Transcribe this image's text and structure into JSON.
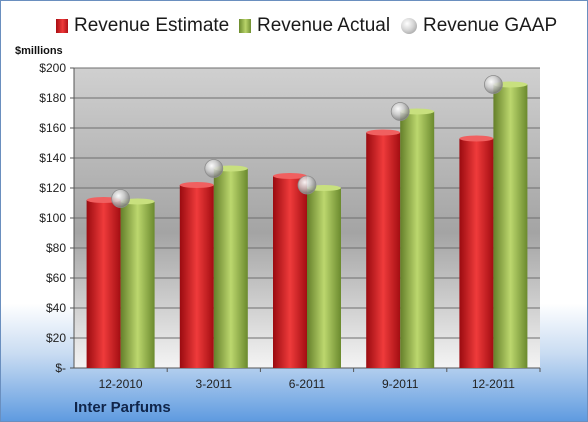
{
  "legend": {
    "estimate": "Revenue Estimate",
    "actual": "Revenue Actual",
    "gaap": "Revenue GAAP"
  },
  "unit_label": "$millions",
  "company": "Inter Parfums",
  "colors": {
    "estimate": "#d2191e",
    "actual": "#9bbb59",
    "gaap": "#c0c0c0"
  },
  "chart_data": {
    "type": "bar",
    "title": "",
    "xlabel": "",
    "ylabel": "$millions",
    "categories": [
      "12-2010",
      "3-2011",
      "6-2011",
      "9-2011",
      "12-2011"
    ],
    "ylim": [
      0,
      200
    ],
    "yticks": [
      0,
      20,
      40,
      60,
      80,
      100,
      120,
      140,
      160,
      180,
      200
    ],
    "ytick_labels": [
      "$-",
      "$20",
      "$40",
      "$60",
      "$80",
      "$100",
      "$120",
      "$140",
      "$160",
      "$180",
      "$200"
    ],
    "grid": true,
    "legend_position": "top",
    "series": [
      {
        "name": "Revenue Estimate",
        "kind": "bar",
        "values": [
          112,
          122,
          128,
          157,
          153
        ]
      },
      {
        "name": "Revenue Actual",
        "kind": "bar",
        "values": [
          111,
          133,
          120,
          171,
          189
        ]
      },
      {
        "name": "Revenue GAAP",
        "kind": "marker",
        "values": [
          113,
          133,
          122,
          171,
          189
        ]
      }
    ]
  }
}
